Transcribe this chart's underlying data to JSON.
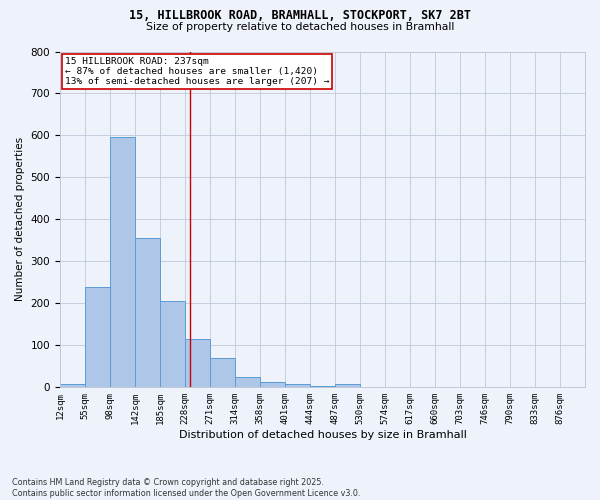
{
  "title_line1": "15, HILLBROOK ROAD, BRAMHALL, STOCKPORT, SK7 2BT",
  "title_line2": "Size of property relative to detached houses in Bramhall",
  "xlabel": "Distribution of detached houses by size in Bramhall",
  "ylabel": "Number of detached properties",
  "footnote": "Contains HM Land Registry data © Crown copyright and database right 2025.\nContains public sector information licensed under the Open Government Licence v3.0.",
  "annotation_line1": "15 HILLBROOK ROAD: 237sqm",
  "annotation_line2": "← 87% of detached houses are smaller (1,420)",
  "annotation_line3": "13% of semi-detached houses are larger (207) →",
  "bar_color": "#aec6e8",
  "bar_edge_color": "#5b9bd5",
  "vline_color": "#cc0000",
  "background_color": "#eef2fb",
  "grid_color": "#c0c8d8",
  "annotation_box_color": "#ffffff",
  "annotation_box_edge": "#cc0000",
  "bin_labels": [
    "12sqm",
    "55sqm",
    "98sqm",
    "142sqm",
    "185sqm",
    "228sqm",
    "271sqm",
    "314sqm",
    "358sqm",
    "401sqm",
    "444sqm",
    "487sqm",
    "530sqm",
    "574sqm",
    "617sqm",
    "660sqm",
    "703sqm",
    "746sqm",
    "790sqm",
    "833sqm",
    "876sqm"
  ],
  "bin_edges": [
    12,
    55,
    98,
    142,
    185,
    228,
    271,
    314,
    358,
    401,
    444,
    487,
    530,
    574,
    617,
    660,
    703,
    746,
    790,
    833,
    876
  ],
  "bar_values": [
    8,
    240,
    597,
    355,
    205,
    115,
    70,
    25,
    13,
    8,
    4,
    9,
    0,
    0,
    0,
    0,
    0,
    0,
    0,
    0,
    0
  ],
  "vline_x": 237,
  "ylim": [
    0,
    800
  ],
  "yticks": [
    0,
    100,
    200,
    300,
    400,
    500,
    600,
    700,
    800
  ]
}
